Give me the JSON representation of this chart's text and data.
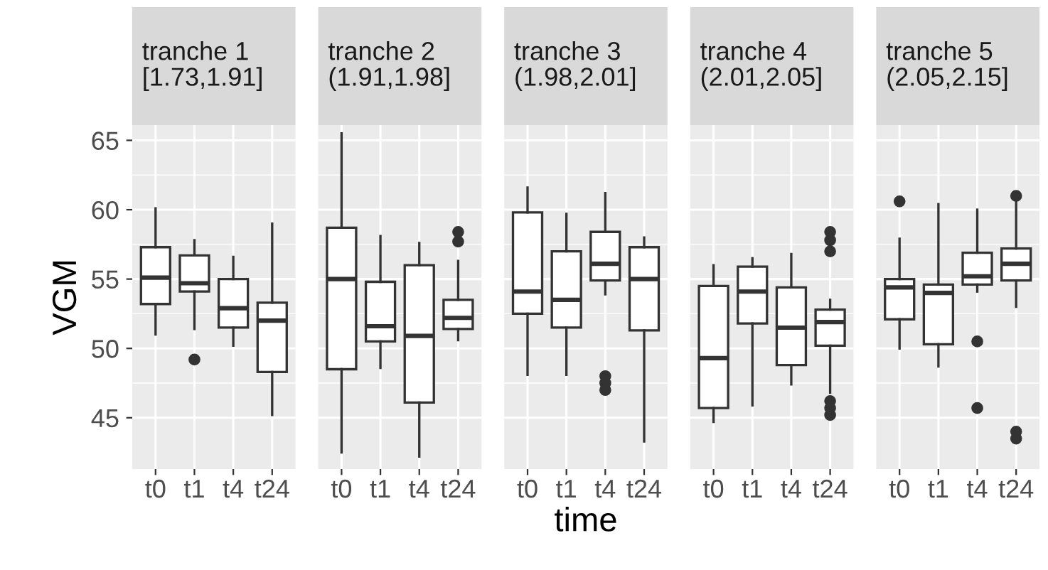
{
  "chart_data": [
    {
      "type": "box",
      "title": "tranche 1\n[1.73,1.91]",
      "ylabel": "VGM",
      "categories": [
        "t0",
        "t1",
        "t4",
        "t24"
      ],
      "ylim": [
        41.3,
        66.1
      ],
      "yticks": [
        45,
        50,
        55,
        60,
        65
      ],
      "grid": true,
      "boxes": [
        {
          "low": 51.0,
          "q1": 53.2,
          "median": 55.1,
          "q3": 57.3,
          "high": 60.1
        },
        {
          "low": 51.4,
          "q1": 54.1,
          "median": 54.7,
          "q3": 56.7,
          "high": 57.8,
          "outliers": [
            49.2
          ]
        },
        {
          "low": 50.2,
          "q1": 51.5,
          "median": 52.9,
          "q3": 55.0,
          "high": 56.6
        },
        {
          "low": 45.2,
          "q1": 48.3,
          "median": 52.0,
          "q3": 53.3,
          "high": 59.0
        }
      ]
    },
    {
      "type": "box",
      "title": "tranche 2\n(1.91,1.98]",
      "categories": [
        "t0",
        "t1",
        "t4",
        "t24"
      ],
      "ylim": [
        41.3,
        66.1
      ],
      "grid": true,
      "tick_labels": "x",
      "boxes": [
        {
          "low": 42.5,
          "q1": 48.5,
          "median": 55.0,
          "q3": 58.7,
          "high": 65.5
        },
        {
          "low": 48.6,
          "q1": 50.5,
          "median": 51.6,
          "q3": 54.8,
          "high": 58.1
        },
        {
          "low": 42.2,
          "q1": 46.1,
          "median": 50.9,
          "q3": 56.0,
          "high": 57.6
        },
        {
          "low": 50.6,
          "q1": 51.4,
          "median": 52.2,
          "q3": 53.5,
          "high": 56.3,
          "outliers": [
            58.4,
            57.7
          ]
        }
      ]
    },
    {
      "type": "box",
      "title": "tranche 3\n(1.98,2.01]",
      "xlabel": "time",
      "categories": [
        "t0",
        "t1",
        "t4",
        "t24"
      ],
      "ylim": [
        41.3,
        66.1
      ],
      "grid": true,
      "tick_labels": "x",
      "boxes": [
        {
          "low": 48.1,
          "q1": 52.5,
          "median": 54.1,
          "q3": 59.8,
          "high": 61.6
        },
        {
          "low": 48.1,
          "q1": 51.5,
          "median": 53.5,
          "q3": 57.0,
          "high": 59.7
        },
        {
          "low": 53.9,
          "q1": 54.9,
          "median": 56.1,
          "q3": 58.4,
          "high": 61.2,
          "outliers": [
            48.0,
            47.5,
            47.0
          ]
        },
        {
          "low": 43.3,
          "q1": 51.3,
          "median": 55.0,
          "q3": 57.3,
          "high": 58.0
        }
      ]
    },
    {
      "type": "box",
      "title": "tranche 4\n(2.01,2.05]",
      "categories": [
        "t0",
        "t1",
        "t4",
        "t24"
      ],
      "ylim": [
        41.3,
        66.1
      ],
      "grid": true,
      "tick_labels": "x",
      "boxes": [
        {
          "low": 44.7,
          "q1": 45.7,
          "median": 49.3,
          "q3": 54.5,
          "high": 56.0
        },
        {
          "low": 45.9,
          "q1": 51.8,
          "median": 54.1,
          "q3": 55.9,
          "high": 56.5
        },
        {
          "low": 47.4,
          "q1": 48.8,
          "median": 51.5,
          "q3": 54.4,
          "high": 56.8
        },
        {
          "low": 46.8,
          "q1": 50.2,
          "median": 51.9,
          "q3": 52.8,
          "high": 53.5,
          "outliers": [
            58.4,
            57.8,
            57.0,
            46.2,
            45.7,
            45.2
          ]
        }
      ]
    },
    {
      "type": "box",
      "title": "tranche 5\n(2.05,2.15]",
      "categories": [
        "t0",
        "t1",
        "t4",
        "t24"
      ],
      "ylim": [
        41.3,
        66.1
      ],
      "grid": true,
      "tick_labels": "x",
      "boxes": [
        {
          "low": 50.0,
          "q1": 52.1,
          "median": 54.4,
          "q3": 55.0,
          "high": 57.9,
          "outliers": [
            60.6
          ]
        },
        {
          "low": 48.7,
          "q1": 50.3,
          "median": 54.0,
          "q3": 54.6,
          "high": 60.4
        },
        {
          "low": 54.1,
          "q1": 54.6,
          "median": 55.2,
          "q3": 56.9,
          "high": 60.0,
          "outliers": [
            50.5,
            45.7
          ]
        },
        {
          "low": 53.0,
          "q1": 54.9,
          "median": 56.1,
          "q3": 57.2,
          "high": 60.6,
          "outliers": [
            61.0,
            44.0,
            43.5
          ]
        }
      ]
    }
  ]
}
